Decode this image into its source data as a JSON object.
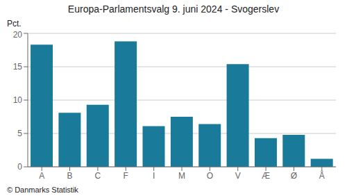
{
  "chart_data": {
    "type": "bar",
    "title": "Europa-Parlamentsvalg 9. juni 2024 - Svogerslev",
    "ylabel": "Pct.",
    "annotations": [
      "© Danmarks Statistik"
    ],
    "categories": [
      "A",
      "B",
      "C",
      "F",
      "I",
      "M",
      "O",
      "V",
      "Æ",
      "Ø",
      "Å"
    ],
    "values": [
      18.3,
      8.1,
      9.3,
      18.8,
      6.1,
      7.5,
      6.4,
      15.4,
      4.3,
      4.8,
      1.2
    ],
    "color": "#1a7a9a",
    "ylim": [
      0,
      20
    ],
    "yticks": [
      0,
      5,
      10,
      15,
      20
    ],
    "grid": true
  }
}
